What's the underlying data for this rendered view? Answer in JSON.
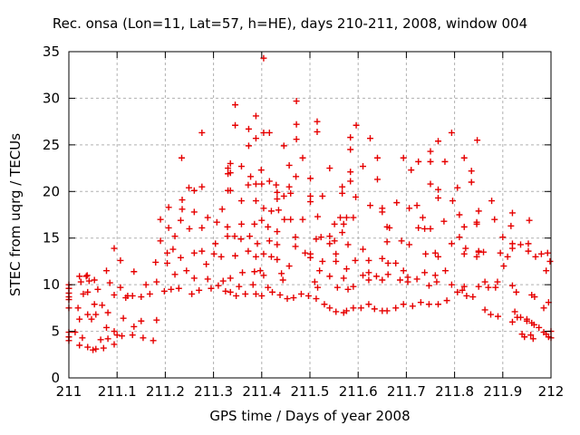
{
  "chart_data": {
    "type": "scatter",
    "title": "Rec. onsa (Lon=11, Lat=57, h=HE), days 210-211, 2008, window 004",
    "xlabel": "GPS time / Days of year 2008",
    "ylabel": "STEC from uqrg / TECUs",
    "xlim": [
      211,
      212
    ],
    "ylim": [
      0,
      35
    ],
    "xticks": {
      "values": [
        211,
        211.1,
        211.2,
        211.3,
        211.4,
        211.5,
        211.6,
        211.7,
        211.8,
        211.9,
        212
      ],
      "labels": [
        "211",
        "211.1",
        "211.2",
        "211.3",
        "211.4",
        "211.5",
        "211.6",
        "211.7",
        "211.8",
        "211.9",
        "212"
      ]
    },
    "yticks": {
      "values": [
        0,
        5,
        10,
        15,
        20,
        25,
        30,
        35
      ],
      "labels": [
        "0",
        "5",
        "10",
        "15",
        "20",
        "25",
        "30",
        "35"
      ]
    },
    "grid": true,
    "legend": "none",
    "marker": {
      "shape": "plus",
      "color": "#e60000",
      "size": 7
    },
    "colors": {
      "grid": "#b0b0b0",
      "axis": "#000000",
      "background": "#ffffff"
    },
    "points": [
      [
        211.0,
        10.0
      ],
      [
        211.0,
        9.6
      ],
      [
        211.0,
        9.1
      ],
      [
        211.0,
        8.7
      ],
      [
        211.0,
        8.4
      ],
      [
        211.0,
        7.5
      ],
      [
        211.0,
        4.9
      ],
      [
        211.0,
        4.4
      ],
      [
        211.0,
        4.0
      ],
      [
        211.013,
        4.9
      ],
      [
        211.019,
        7.5
      ],
      [
        211.022,
        10.9
      ],
      [
        211.022,
        6.3
      ],
      [
        211.022,
        3.5
      ],
      [
        211.025,
        10.3
      ],
      [
        211.028,
        4.3
      ],
      [
        211.03,
        9.0
      ],
      [
        211.036,
        10.9
      ],
      [
        211.038,
        11.0
      ],
      [
        211.039,
        9.2
      ],
      [
        211.039,
        6.8
      ],
      [
        211.039,
        3.3
      ],
      [
        211.042,
        10.4
      ],
      [
        211.047,
        6.3
      ],
      [
        211.05,
        3.0
      ],
      [
        211.053,
        10.5
      ],
      [
        211.053,
        7.9
      ],
      [
        211.056,
        6.8
      ],
      [
        211.056,
        3.1
      ],
      [
        211.06,
        9.5
      ],
      [
        211.066,
        4.1
      ],
      [
        211.069,
        7.8
      ],
      [
        211.072,
        3.2
      ],
      [
        211.078,
        11.5
      ],
      [
        211.078,
        5.4
      ],
      [
        211.081,
        7.0
      ],
      [
        211.081,
        4.2
      ],
      [
        211.085,
        10.2
      ],
      [
        211.094,
        13.9
      ],
      [
        211.094,
        8.9
      ],
      [
        211.094,
        5.0
      ],
      [
        211.094,
        3.6
      ],
      [
        211.1,
        4.6
      ],
      [
        211.107,
        12.6
      ],
      [
        211.107,
        9.7
      ],
      [
        211.11,
        4.5
      ],
      [
        211.113,
        6.4
      ],
      [
        211.118,
        8.6
      ],
      [
        211.122,
        8.8
      ],
      [
        211.132,
        8.8
      ],
      [
        211.132,
        4.6
      ],
      [
        211.135,
        11.4
      ],
      [
        211.135,
        5.5
      ],
      [
        211.15,
        8.7
      ],
      [
        211.15,
        6.1
      ],
      [
        211.154,
        4.3
      ],
      [
        211.16,
        10.0
      ],
      [
        211.168,
        9.0
      ],
      [
        211.175,
        4.0
      ],
      [
        211.18,
        12.4
      ],
      [
        211.182,
        10.3
      ],
      [
        211.182,
        6.2
      ],
      [
        211.19,
        17.0
      ],
      [
        211.19,
        14.7
      ],
      [
        211.198,
        9.3
      ],
      [
        211.204,
        13.4
      ],
      [
        211.204,
        12.3
      ],
      [
        211.207,
        18.3
      ],
      [
        211.207,
        16.1
      ],
      [
        211.212,
        9.5
      ],
      [
        211.216,
        13.8
      ],
      [
        211.22,
        15.2
      ],
      [
        211.22,
        11.1
      ],
      [
        211.228,
        9.6
      ],
      [
        211.232,
        16.9
      ],
      [
        211.232,
        12.9
      ],
      [
        211.234,
        23.6
      ],
      [
        211.235,
        19.1
      ],
      [
        211.235,
        18.1
      ],
      [
        211.244,
        11.5
      ],
      [
        211.249,
        20.4
      ],
      [
        211.25,
        16.0
      ],
      [
        211.255,
        9.0
      ],
      [
        211.26,
        20.1
      ],
      [
        211.26,
        17.8
      ],
      [
        211.26,
        13.4
      ],
      [
        211.26,
        10.7
      ],
      [
        211.27,
        9.4
      ],
      [
        211.276,
        26.3
      ],
      [
        211.276,
        20.5
      ],
      [
        211.276,
        16.1
      ],
      [
        211.276,
        13.6
      ],
      [
        211.285,
        12.2
      ],
      [
        211.288,
        17.2
      ],
      [
        211.288,
        10.6
      ],
      [
        211.295,
        9.6
      ],
      [
        211.301,
        13.3
      ],
      [
        211.304,
        14.4
      ],
      [
        211.307,
        16.7
      ],
      [
        211.31,
        9.9
      ],
      [
        211.316,
        13.0
      ],
      [
        211.318,
        18.1
      ],
      [
        211.32,
        10.4
      ],
      [
        211.325,
        9.3
      ],
      [
        211.329,
        16.2
      ],
      [
        211.329,
        15.2
      ],
      [
        211.33,
        22.5
      ],
      [
        211.33,
        21.9
      ],
      [
        211.33,
        20.1
      ],
      [
        211.335,
        23.0
      ],
      [
        211.335,
        22.0
      ],
      [
        211.335,
        20.1
      ],
      [
        211.335,
        10.7
      ],
      [
        211.335,
        9.2
      ],
      [
        211.344,
        15.2
      ],
      [
        211.345,
        29.3
      ],
      [
        211.345,
        27.1
      ],
      [
        211.345,
        13.1
      ],
      [
        211.347,
        8.8
      ],
      [
        211.353,
        9.8
      ],
      [
        211.357,
        14.9
      ],
      [
        211.358,
        22.7
      ],
      [
        211.358,
        19.0
      ],
      [
        211.358,
        16.5
      ],
      [
        211.36,
        11.3
      ],
      [
        211.366,
        9.0
      ],
      [
        211.372,
        20.7
      ],
      [
        211.372,
        13.6
      ],
      [
        211.373,
        26.7
      ],
      [
        211.373,
        24.9
      ],
      [
        211.375,
        15.2
      ],
      [
        211.377,
        21.6
      ],
      [
        211.382,
        10.0
      ],
      [
        211.385,
        16.5
      ],
      [
        211.385,
        11.4
      ],
      [
        211.388,
        28.1
      ],
      [
        211.388,
        25.7
      ],
      [
        211.388,
        20.8
      ],
      [
        211.388,
        19.0
      ],
      [
        211.388,
        13.0
      ],
      [
        211.388,
        9.0
      ],
      [
        211.391,
        14.4
      ],
      [
        211.397,
        11.5
      ],
      [
        211.399,
        22.3
      ],
      [
        211.4,
        20.8
      ],
      [
        211.4,
        16.9
      ],
      [
        211.4,
        8.8
      ],
      [
        211.404,
        34.3
      ],
      [
        211.404,
        26.3
      ],
      [
        211.404,
        18.2
      ],
      [
        211.404,
        13.3
      ],
      [
        211.404,
        11.0
      ],
      [
        211.413,
        16.2
      ],
      [
        211.413,
        9.7
      ],
      [
        211.416,
        26.3
      ],
      [
        211.416,
        21.1
      ],
      [
        211.416,
        14.7
      ],
      [
        211.42,
        17.9
      ],
      [
        211.42,
        13.0
      ],
      [
        211.422,
        9.2
      ],
      [
        211.43,
        20.7
      ],
      [
        211.432,
        19.9
      ],
      [
        211.432,
        19.2
      ],
      [
        211.432,
        15.7
      ],
      [
        211.432,
        14.3
      ],
      [
        211.432,
        12.7
      ],
      [
        211.435,
        18.0
      ],
      [
        211.438,
        8.9
      ],
      [
        211.441,
        11.2
      ],
      [
        211.444,
        10.5
      ],
      [
        211.446,
        24.9
      ],
      [
        211.446,
        19.5
      ],
      [
        211.447,
        17.0
      ],
      [
        211.453,
        8.5
      ],
      [
        211.457,
        22.8
      ],
      [
        211.457,
        20.5
      ],
      [
        211.457,
        12.0
      ],
      [
        211.46,
        19.8
      ],
      [
        211.46,
        17.0
      ],
      [
        211.466,
        8.6
      ],
      [
        211.47,
        15.1
      ],
      [
        211.47,
        14.1
      ],
      [
        211.471,
        21.6
      ],
      [
        211.472,
        29.7
      ],
      [
        211.472,
        27.2
      ],
      [
        211.472,
        25.6
      ],
      [
        211.482,
        9.0
      ],
      [
        211.485,
        23.6
      ],
      [
        211.485,
        17.0
      ],
      [
        211.49,
        13.4
      ],
      [
        211.497,
        8.8
      ],
      [
        211.501,
        21.4
      ],
      [
        211.501,
        19.5
      ],
      [
        211.501,
        18.9
      ],
      [
        211.501,
        13.3
      ],
      [
        211.501,
        12.9
      ],
      [
        211.51,
        10.3
      ],
      [
        211.513,
        14.9
      ],
      [
        211.513,
        8.5
      ],
      [
        211.515,
        27.5
      ],
      [
        211.515,
        26.4
      ],
      [
        211.516,
        17.3
      ],
      [
        211.516,
        9.7
      ],
      [
        211.52,
        11.5
      ],
      [
        211.523,
        15.1
      ],
      [
        211.526,
        19.5
      ],
      [
        211.526,
        12.5
      ],
      [
        211.53,
        7.9
      ],
      [
        211.541,
        22.5
      ],
      [
        211.541,
        15.2
      ],
      [
        211.541,
        14.4
      ],
      [
        211.541,
        10.9
      ],
      [
        211.541,
        7.5
      ],
      [
        211.551,
        16.5
      ],
      [
        211.551,
        14.7
      ],
      [
        211.554,
        13.3
      ],
      [
        211.554,
        12.5
      ],
      [
        211.554,
        7.1
      ],
      [
        211.557,
        9.7
      ],
      [
        211.563,
        17.2
      ],
      [
        211.567,
        20.5
      ],
      [
        211.567,
        19.8
      ],
      [
        211.567,
        15.6
      ],
      [
        211.57,
        16.5
      ],
      [
        211.57,
        10.7
      ],
      [
        211.57,
        7.0
      ],
      [
        211.576,
        17.2
      ],
      [
        211.576,
        11.7
      ],
      [
        211.576,
        7.2
      ],
      [
        211.579,
        14.3
      ],
      [
        211.579,
        9.5
      ],
      [
        211.584,
        25.8
      ],
      [
        211.584,
        24.5
      ],
      [
        211.584,
        22.1
      ],
      [
        211.584,
        21.1
      ],
      [
        211.59,
        17.2
      ],
      [
        211.59,
        9.8
      ],
      [
        211.59,
        7.5
      ],
      [
        211.594,
        12.6
      ],
      [
        211.595,
        19.4
      ],
      [
        211.596,
        27.1
      ],
      [
        211.606,
        7.5
      ],
      [
        211.61,
        22.7
      ],
      [
        211.61,
        13.8
      ],
      [
        211.61,
        11.0
      ],
      [
        211.622,
        12.6
      ],
      [
        211.622,
        11.3
      ],
      [
        211.622,
        10.5
      ],
      [
        211.622,
        7.9
      ],
      [
        211.625,
        25.7
      ],
      [
        211.625,
        18.5
      ],
      [
        211.634,
        7.4
      ],
      [
        211.638,
        10.9
      ],
      [
        211.64,
        23.6
      ],
      [
        211.64,
        21.3
      ],
      [
        211.65,
        18.2
      ],
      [
        211.65,
        17.8
      ],
      [
        211.65,
        12.8
      ],
      [
        211.65,
        10.5
      ],
      [
        211.65,
        7.2
      ],
      [
        211.66,
        16.2
      ],
      [
        211.66,
        14.6
      ],
      [
        211.66,
        7.2
      ],
      [
        211.662,
        12.3
      ],
      [
        211.662,
        11.1
      ],
      [
        211.665,
        16.1
      ],
      [
        211.678,
        12.3
      ],
      [
        211.678,
        7.5
      ],
      [
        211.68,
        18.8
      ],
      [
        211.687,
        10.5
      ],
      [
        211.69,
        14.7
      ],
      [
        211.694,
        23.6
      ],
      [
        211.694,
        11.5
      ],
      [
        211.694,
        7.9
      ],
      [
        211.703,
        10.8
      ],
      [
        211.703,
        10.3
      ],
      [
        211.706,
        18.2
      ],
      [
        211.706,
        14.3
      ],
      [
        211.71,
        22.3
      ],
      [
        211.713,
        7.7
      ],
      [
        211.722,
        18.5
      ],
      [
        211.722,
        10.6
      ],
      [
        211.725,
        23.2
      ],
      [
        211.725,
        16.1
      ],
      [
        211.73,
        8.1
      ],
      [
        211.734,
        17.2
      ],
      [
        211.738,
        16.0
      ],
      [
        211.738,
        11.3
      ],
      [
        211.74,
        13.3
      ],
      [
        211.747,
        9.9
      ],
      [
        211.747,
        7.9
      ],
      [
        211.75,
        24.3
      ],
      [
        211.75,
        23.2
      ],
      [
        211.75,
        20.8
      ],
      [
        211.75,
        16.0
      ],
      [
        211.76,
        13.4
      ],
      [
        211.76,
        11.0
      ],
      [
        211.763,
        10.3
      ],
      [
        211.766,
        25.4
      ],
      [
        211.766,
        20.2
      ],
      [
        211.766,
        19.3
      ],
      [
        211.766,
        13.0
      ],
      [
        211.766,
        7.9
      ],
      [
        211.778,
        16.8
      ],
      [
        211.78,
        23.2
      ],
      [
        211.781,
        11.5
      ],
      [
        211.784,
        8.3
      ],
      [
        211.794,
        26.3
      ],
      [
        211.794,
        14.4
      ],
      [
        211.794,
        10.0
      ],
      [
        211.796,
        19.0
      ],
      [
        211.806,
        20.4
      ],
      [
        211.806,
        9.2
      ],
      [
        211.81,
        17.5
      ],
      [
        211.81,
        15.1
      ],
      [
        211.816,
        9.4
      ],
      [
        211.82,
        23.6
      ],
      [
        211.82,
        16.2
      ],
      [
        211.82,
        13.3
      ],
      [
        211.82,
        9.8
      ],
      [
        211.823,
        13.9
      ],
      [
        211.825,
        8.8
      ],
      [
        211.835,
        22.2
      ],
      [
        211.835,
        21.0
      ],
      [
        211.838,
        8.7
      ],
      [
        211.846,
        16.7
      ],
      [
        211.846,
        16.5
      ],
      [
        211.846,
        13.0
      ],
      [
        211.847,
        25.5
      ],
      [
        211.85,
        17.9
      ],
      [
        211.85,
        13.6
      ],
      [
        211.85,
        13.5
      ],
      [
        211.85,
        9.8
      ],
      [
        211.86,
        13.5
      ],
      [
        211.863,
        10.3
      ],
      [
        211.863,
        7.3
      ],
      [
        211.87,
        9.7
      ],
      [
        211.875,
        6.8
      ],
      [
        211.877,
        19.0
      ],
      [
        211.883,
        17.0
      ],
      [
        211.885,
        9.7
      ],
      [
        211.889,
        10.3
      ],
      [
        211.89,
        6.6
      ],
      [
        211.895,
        13.4
      ],
      [
        211.9,
        15.1
      ],
      [
        211.902,
        12.0
      ],
      [
        211.91,
        13.0
      ],
      [
        211.917,
        16.3
      ],
      [
        211.92,
        17.7
      ],
      [
        211.92,
        14.4
      ],
      [
        211.92,
        13.9
      ],
      [
        211.92,
        9.9
      ],
      [
        211.92,
        6.0
      ],
      [
        211.925,
        7.1
      ],
      [
        211.928,
        9.2
      ],
      [
        211.93,
        6.5
      ],
      [
        211.937,
        14.3
      ],
      [
        211.937,
        6.5
      ],
      [
        211.94,
        4.7
      ],
      [
        211.945,
        4.4
      ],
      [
        211.95,
        6.3
      ],
      [
        211.95,
        6.1
      ],
      [
        211.953,
        14.4
      ],
      [
        211.953,
        13.6
      ],
      [
        211.955,
        16.9
      ],
      [
        211.958,
        4.6
      ],
      [
        211.96,
        8.9
      ],
      [
        211.96,
        5.9
      ],
      [
        211.963,
        4.2
      ],
      [
        211.965,
        5.7
      ],
      [
        211.966,
        8.7
      ],
      [
        211.968,
        13.0
      ],
      [
        211.975,
        5.4
      ],
      [
        211.98,
        13.3
      ],
      [
        211.985,
        4.9
      ],
      [
        211.985,
        7.5
      ],
      [
        211.99,
        11.5
      ],
      [
        211.99,
        4.7
      ],
      [
        211.993,
        13.4
      ],
      [
        211.995,
        8.1
      ],
      [
        211.995,
        4.4
      ],
      [
        211.998,
        12.5
      ],
      [
        212.0,
        5.0
      ],
      [
        212.0,
        4.3
      ]
    ]
  }
}
